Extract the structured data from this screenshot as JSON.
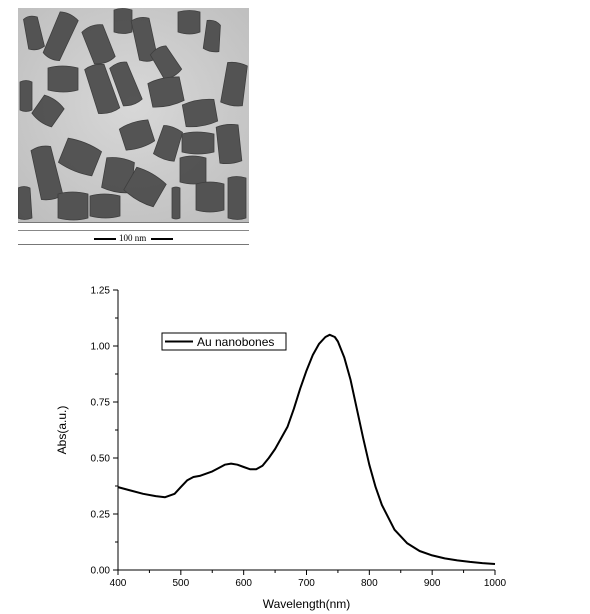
{
  "figure": {
    "tem_panel": {
      "scale_bar_label": "100 nm"
    }
  },
  "chart_data": {
    "type": "line",
    "xlabel": "Wavelength(nm)",
    "ylabel": "Abs(a.u.)",
    "xlim": [
      400,
      1000
    ],
    "ylim": [
      0,
      1.25
    ],
    "xticks": [
      400,
      500,
      600,
      700,
      800,
      900,
      1000
    ],
    "yticks": [
      0.0,
      0.25,
      0.5,
      0.75,
      1.0,
      1.25
    ],
    "ytick_labels": [
      "0.00",
      "0.25",
      "0.50",
      "0.75",
      "1.00",
      "1.25"
    ],
    "grid": false,
    "legend_position": "top-left",
    "series": [
      {
        "name": "Au nanobones",
        "color": "#000000",
        "x": [
          400,
          420,
          440,
          460,
          475,
          490,
          500,
          510,
          520,
          530,
          540,
          550,
          560,
          570,
          580,
          590,
          600,
          610,
          620,
          630,
          640,
          650,
          660,
          670,
          680,
          690,
          700,
          710,
          720,
          730,
          737,
          745,
          750,
          760,
          770,
          780,
          790,
          800,
          810,
          820,
          840,
          860,
          880,
          900,
          920,
          940,
          960,
          980,
          1000
        ],
        "y": [
          0.37,
          0.355,
          0.34,
          0.33,
          0.325,
          0.34,
          0.37,
          0.4,
          0.415,
          0.42,
          0.43,
          0.44,
          0.455,
          0.47,
          0.475,
          0.47,
          0.46,
          0.45,
          0.45,
          0.465,
          0.5,
          0.54,
          0.59,
          0.64,
          0.72,
          0.81,
          0.89,
          0.96,
          1.01,
          1.04,
          1.05,
          1.04,
          1.02,
          0.95,
          0.85,
          0.72,
          0.59,
          0.47,
          0.37,
          0.29,
          0.18,
          0.12,
          0.085,
          0.065,
          0.052,
          0.043,
          0.036,
          0.031,
          0.027
        ]
      }
    ]
  }
}
